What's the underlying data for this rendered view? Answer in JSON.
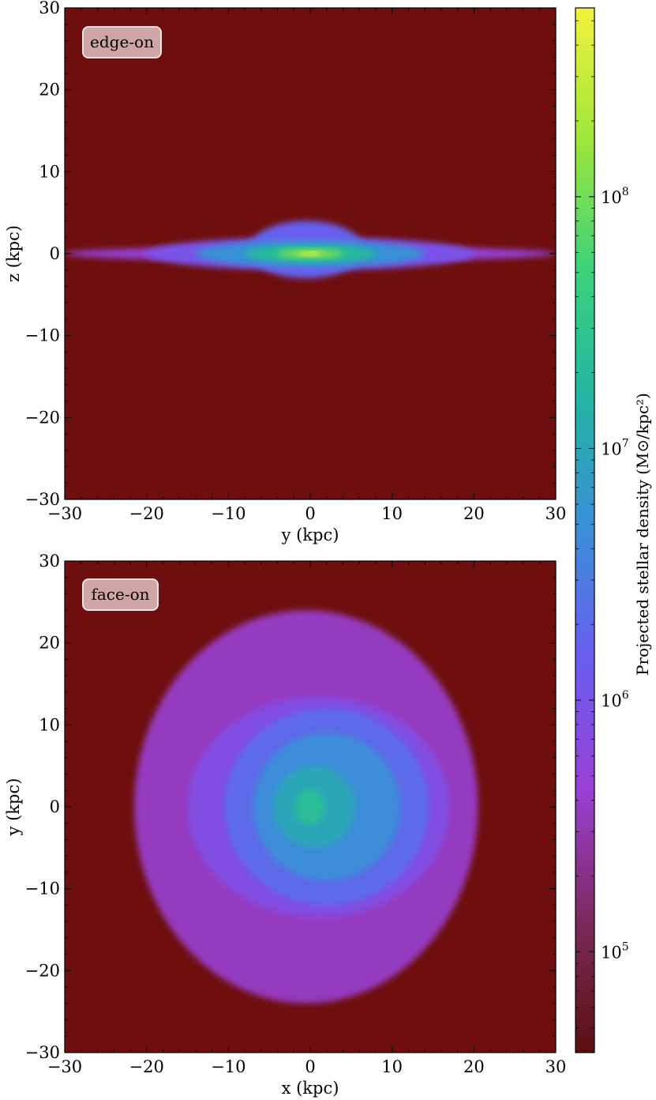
{
  "colors": {
    "background": "#6e0e0e",
    "viridis_stops": [
      "#5a1010",
      "#7a2a5c",
      "#9a3fd4",
      "#6b5cf0",
      "#3a8ed8",
      "#22b4a4",
      "#3cd27a",
      "#9ee63a",
      "#f2f23a"
    ]
  },
  "chart_data": [
    {
      "type": "heatmap",
      "panel_label": "edge-on",
      "xlabel": "y  (kpc)",
      "ylabel": "z  (kpc)",
      "xlim": [
        -30,
        30
      ],
      "ylim": [
        -30,
        30
      ],
      "xticks": [
        -30,
        -20,
        -10,
        0,
        10,
        20,
        30
      ],
      "yticks": [
        -30,
        -20,
        -10,
        0,
        10,
        20,
        30
      ],
      "xtick_labels": [
        "−30",
        "−20",
        "−10",
        "0",
        "10",
        "20",
        "30"
      ],
      "ytick_labels": [
        "−30",
        "−20",
        "−10",
        "0",
        "10",
        "20",
        "30"
      ],
      "features": [
        {
          "shape": "ellipse",
          "cx": 0,
          "cy": 0,
          "rx": 30,
          "ry": 0.9,
          "log_density": 5.7
        },
        {
          "shape": "ellipse",
          "cx": 0,
          "cy": 0,
          "rx": 20,
          "ry": 2.0,
          "log_density": 6.0
        },
        {
          "shape": "ellipse",
          "cx": -0.5,
          "cy": 0.5,
          "rx": 7,
          "ry": 3.5,
          "log_density": 6.2
        },
        {
          "shape": "ellipse",
          "cx": 0,
          "cy": 0,
          "rx": 14,
          "ry": 1.6,
          "log_density": 6.7
        },
        {
          "shape": "ellipse",
          "cx": 0,
          "cy": 0,
          "rx": 8,
          "ry": 1.1,
          "log_density": 7.3
        },
        {
          "shape": "ellipse",
          "cx": 0,
          "cy": 0,
          "rx": 4,
          "ry": 0.6,
          "log_density": 8.0
        },
        {
          "shape": "ellipse",
          "cx": 0,
          "cy": 0,
          "rx": 1.5,
          "ry": 0.3,
          "log_density": 8.6
        }
      ]
    },
    {
      "type": "heatmap",
      "panel_label": "face-on",
      "xlabel": "x  (kpc)",
      "ylabel": "y  (kpc)",
      "xlim": [
        -30,
        30
      ],
      "ylim": [
        -30,
        30
      ],
      "xticks": [
        -30,
        -20,
        -10,
        0,
        10,
        20,
        30
      ],
      "yticks": [
        -30,
        -20,
        -10,
        0,
        10,
        20,
        30
      ],
      "xtick_labels": [
        "−30",
        "−20",
        "−10",
        "0",
        "10",
        "20",
        "30"
      ],
      "ytick_labels": [
        "−30",
        "−20",
        "−10",
        "0",
        "10",
        "20",
        "30"
      ],
      "features": [
        {
          "shape": "ellipse",
          "cx": -0.5,
          "cy": 0,
          "rx": 21,
          "ry": 24,
          "log_density": 5.55
        },
        {
          "shape": "ellipse",
          "cx": 1,
          "cy": 0,
          "rx": 16,
          "ry": 13.5,
          "log_density": 5.9
        },
        {
          "shape": "ellipse",
          "cx": 2,
          "cy": 0,
          "rx": 12.5,
          "ry": 12,
          "log_density": 6.3
        },
        {
          "shape": "ellipse",
          "cx": 2,
          "cy": 0,
          "rx": 9,
          "ry": 9,
          "log_density": 6.65
        },
        {
          "shape": "ellipse",
          "cx": 0.5,
          "cy": 0,
          "rx": 5,
          "ry": 5,
          "log_density": 7.0
        },
        {
          "shape": "ellipse",
          "cx": 0,
          "cy": 0,
          "rx": 1.8,
          "ry": 2.2,
          "log_density": 7.35
        }
      ]
    }
  ],
  "colorbar": {
    "scale": "log",
    "range_log10": [
      4.6,
      8.75
    ],
    "label": "Projected stellar density (M⊙/kpc²)",
    "ticks": [
      {
        "log10": 5,
        "base": "10",
        "exp": "5"
      },
      {
        "log10": 6,
        "base": "10",
        "exp": "6"
      },
      {
        "log10": 7,
        "base": "10",
        "exp": "7"
      },
      {
        "log10": 8,
        "base": "10",
        "exp": "8"
      }
    ]
  }
}
